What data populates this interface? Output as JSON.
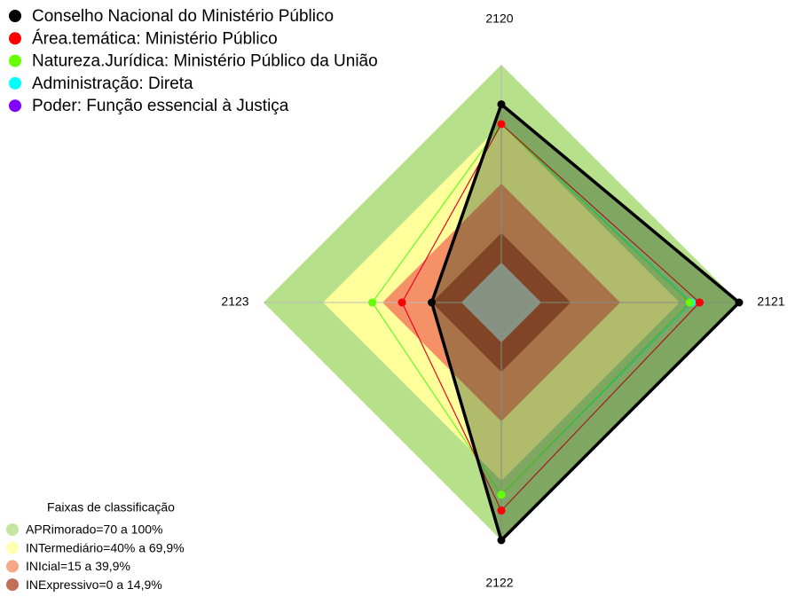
{
  "chart_data": {
    "type": "radar",
    "categories": [
      "2120",
      "2121",
      "2122",
      "2123"
    ],
    "ylim": [
      0,
      100
    ],
    "series": [
      {
        "name": "Conselho Nacional do Ministério Público",
        "color": "#000000",
        "values": [
          80,
          100,
          100,
          15
        ]
      },
      {
        "name": "Área.temática: Ministério Público",
        "color": "#ff0000",
        "values": [
          70,
          80,
          85,
          30
        ]
      },
      {
        "name": "Natureza.Jurídica: Ministério Público da União",
        "color": "#66ff00",
        "values": [
          70,
          75,
          77,
          45
        ]
      },
      {
        "name": "Administração: Direta",
        "color": "#00ffff",
        "values": [
          70,
          76,
          77,
          45
        ]
      },
      {
        "name": "Poder: Função essencial à Justiça",
        "color": "#8000ff",
        "values": [
          70,
          80,
          85,
          30
        ]
      }
    ],
    "bands_title": "Faixas de classificação",
    "bands": [
      {
        "label": "APRimorado=70 a 100%",
        "color": "#b6e08a",
        "max": 100
      },
      {
        "label": "INTermediário=40% a 69,9%",
        "color": "#ffff9c",
        "max": 69.9
      },
      {
        "label": "INIcial=15 a 39,9%",
        "color": "#f59167",
        "max": 39.9
      },
      {
        "label": "INExpressivo=0 a 14,9%",
        "color": "#b44a30",
        "max": 14.9
      }
    ]
  }
}
